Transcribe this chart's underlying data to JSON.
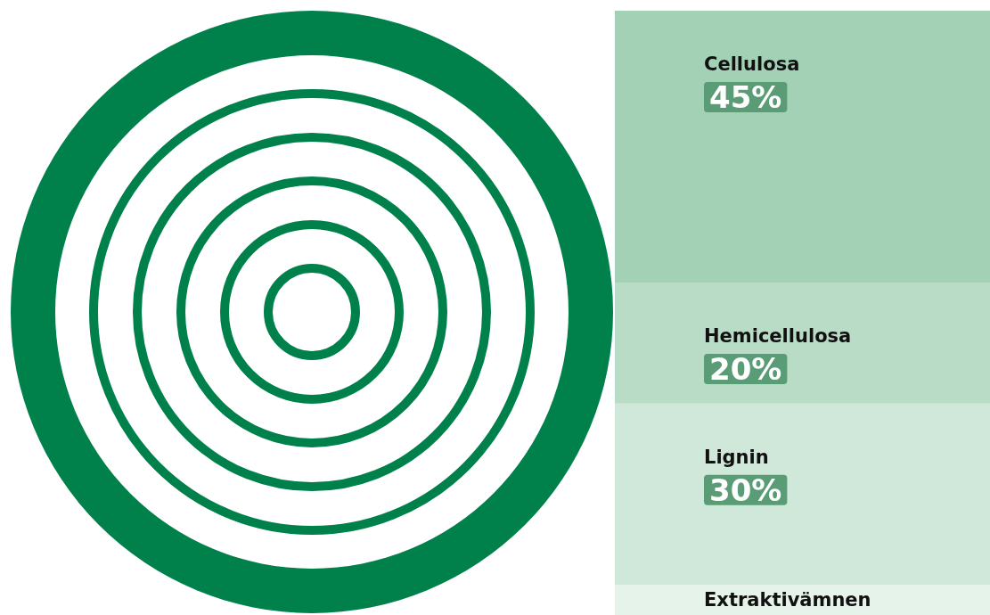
{
  "chart_data": {
    "type": "bar",
    "stacked": true,
    "categories": [
      null
    ],
    "legend": false,
    "series": [
      {
        "name": "Extraktivämnen",
        "color": "#e6f3ea",
        "values": [
          5
        ],
        "value_labels": [
          null
        ]
      },
      {
        "name": "Lignin",
        "color": "#d0e8d9",
        "values": [
          30
        ],
        "value_labels": [
          "30%"
        ]
      },
      {
        "name": "Hemicellulosa",
        "color": "#b9dcc6",
        "values": [
          20
        ],
        "value_labels": [
          "20%"
        ]
      },
      {
        "name": "Cellulosa",
        "color": "#a3d1b5",
        "values": [
          45
        ],
        "value_labels": [
          "45%"
        ]
      }
    ]
  }
}
